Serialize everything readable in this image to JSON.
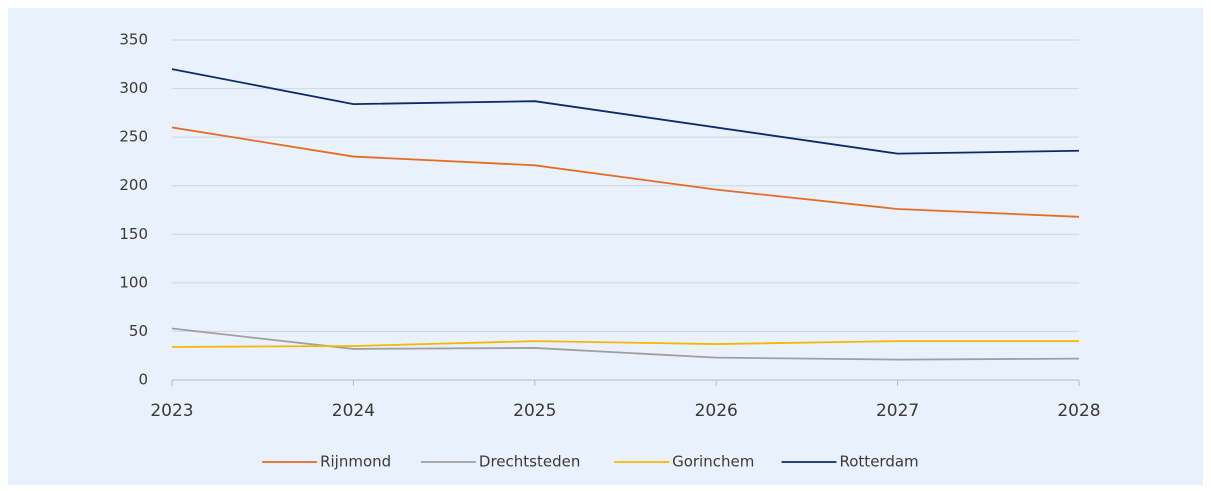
{
  "chart_data": {
    "type": "line",
    "x": [
      2023,
      2024,
      2025,
      2026,
      2027,
      2028
    ],
    "xlim": [
      2023,
      2028
    ],
    "xticks": [
      2023,
      2024,
      2025,
      2026,
      2027,
      2028
    ],
    "ylim": [
      0,
      350
    ],
    "yticks": [
      0,
      50,
      100,
      150,
      200,
      250,
      300,
      350
    ],
    "grid": true,
    "legend": "bottom",
    "series": [
      {
        "name": "Rijnmond",
        "color": "#e46c24",
        "values": [
          260,
          230,
          221,
          196,
          176,
          168
        ]
      },
      {
        "name": "Drechtsteden",
        "color": "#a0a0a0",
        "values": [
          53,
          32,
          33,
          23,
          21,
          22
        ]
      },
      {
        "name": "Gorinchem",
        "color": "#f5b800",
        "values": [
          34,
          35,
          40,
          37,
          40,
          40
        ]
      },
      {
        "name": "Rotterdam",
        "color": "#0b2a6b",
        "values": [
          320,
          284,
          287,
          260,
          233,
          236
        ]
      }
    ]
  }
}
